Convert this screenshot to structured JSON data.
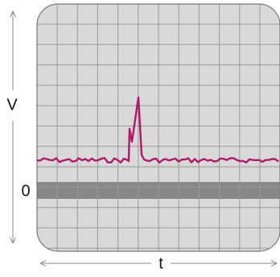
{
  "labels": {
    "y_axis": "V",
    "zero": "0",
    "x_axis": "t"
  }
}
